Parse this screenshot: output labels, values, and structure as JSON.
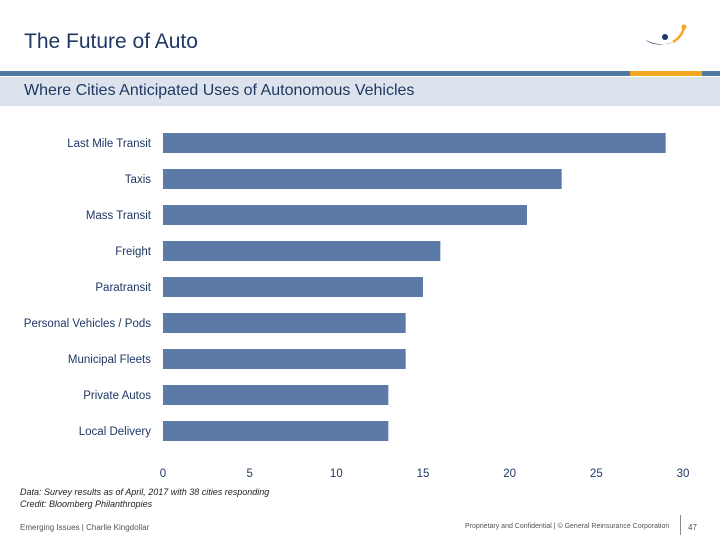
{
  "slide": {
    "title": "The Future of Auto",
    "subtitle": "Where Cities Anticipated Uses of Autonomous Vehicles"
  },
  "chart_data": {
    "type": "bar",
    "orientation": "horizontal",
    "categories": [
      "Last Mile Transit",
      "Taxis",
      "Mass Transit",
      "Freight",
      "Paratransit",
      "Personal Vehicles / Pods",
      "Municipal Fleets",
      "Private Autos",
      "Local Delivery"
    ],
    "values": [
      29,
      23,
      21,
      16,
      15,
      14,
      14,
      13,
      13
    ],
    "xlim": [
      0,
      30
    ],
    "xticks": [
      0,
      5,
      10,
      15,
      20,
      25,
      30
    ],
    "bar_color": "#5b7aa6",
    "grid": false
  },
  "notes": {
    "data_note": "Data: Survey results as of April, 2017 with 38 cities responding",
    "credit": "Credit: Bloomberg Philanthropies"
  },
  "footer": {
    "left": "Emerging Issues | Charlie Kingdollar",
    "right": "Proprietary and Confidential  |  © General Reinsurance Corporation",
    "page": "47"
  },
  "colors": {
    "brand_blue": "#1f3864",
    "rule_blue": "#5278a6",
    "accent_orange": "#f5a623"
  }
}
